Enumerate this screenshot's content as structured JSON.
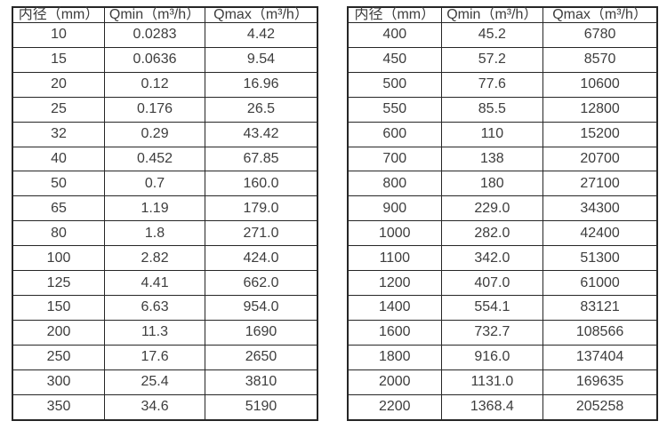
{
  "page": {
    "background": "#ffffff",
    "text_color": "#3d3d3d",
    "border_color": "#262626"
  },
  "chart_data": [
    {
      "type": "table",
      "name": "flow-range-table-dn10-dn350",
      "columns": [
        "内径（mm）",
        "Qmin（m³/h）",
        "Qmax（m³/h）"
      ],
      "rows": [
        [
          "10",
          "0.0283",
          "4.42"
        ],
        [
          "15",
          "0.0636",
          "9.54"
        ],
        [
          "20",
          "0.12",
          "16.96"
        ],
        [
          "25",
          "0.176",
          "26.5"
        ],
        [
          "32",
          "0.29",
          "43.42"
        ],
        [
          "40",
          "0.452",
          "67.85"
        ],
        [
          "50",
          "0.7",
          "160.0"
        ],
        [
          "65",
          "1.19",
          "179.0"
        ],
        [
          "80",
          "1.8",
          "271.0"
        ],
        [
          "100",
          "2.82",
          "424.0"
        ],
        [
          "125",
          "4.41",
          "662.0"
        ],
        [
          "150",
          "6.63",
          "954.0"
        ],
        [
          "200",
          "11.3",
          "1690"
        ],
        [
          "250",
          "17.6",
          "2650"
        ],
        [
          "300",
          "25.4",
          "3810"
        ],
        [
          "350",
          "34.6",
          "5190"
        ]
      ]
    },
    {
      "type": "table",
      "name": "flow-range-table-dn400-dn2200",
      "columns": [
        "内径（mm）",
        "Qmin（m³/h）",
        "Qmax（m³/h）"
      ],
      "rows": [
        [
          "400",
          "45.2",
          "6780"
        ],
        [
          "450",
          "57.2",
          "8570"
        ],
        [
          "500",
          "77.6",
          "10600"
        ],
        [
          "550",
          "85.5",
          "12800"
        ],
        [
          "600",
          "110",
          "15200"
        ],
        [
          "700",
          "138",
          "20700"
        ],
        [
          "800",
          "180",
          "27100"
        ],
        [
          "900",
          "229.0",
          "34300"
        ],
        [
          "1000",
          "282.0",
          "42400"
        ],
        [
          "1100",
          "342.0",
          "51300"
        ],
        [
          "1200",
          "407.0",
          "61000"
        ],
        [
          "1400",
          "554.1",
          "83121"
        ],
        [
          "1600",
          "732.7",
          "108566"
        ],
        [
          "1800",
          "916.0",
          "137404"
        ],
        [
          "2000",
          "1131.0",
          "169635"
        ],
        [
          "2200",
          "1368.4",
          "205258"
        ]
      ]
    }
  ]
}
